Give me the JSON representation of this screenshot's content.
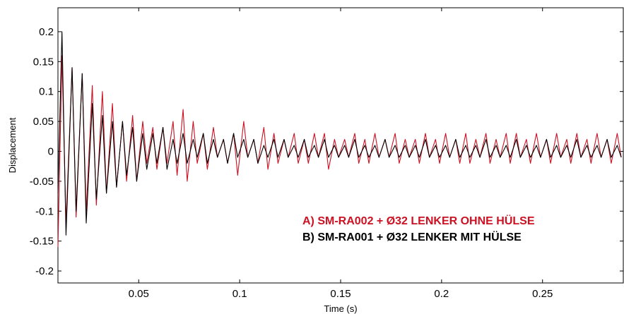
{
  "chart_data": {
    "type": "line",
    "title": "",
    "xlabel": "Time (s)",
    "ylabel": "Displacement",
    "xlim": [
      0.01,
      0.29
    ],
    "ylim": [
      -0.22,
      0.24
    ],
    "xticks": [
      0.05,
      0.1,
      0.15,
      0.2,
      0.25
    ],
    "xtick_labels": [
      "0.05",
      "0.1",
      "0.15",
      "0.2",
      "0.25"
    ],
    "yticks": [
      0.2,
      0.15,
      0.1,
      0.05,
      0,
      -0.05,
      -0.1,
      -0.15,
      -0.2
    ],
    "ytick_labels": [
      "0.2",
      "0.15",
      "0.1",
      "0.05",
      "0",
      "-0.05",
      "-0.1",
      "-0.15",
      "-0.2"
    ],
    "grid": false,
    "legend_position": "bottom-right",
    "series": [
      {
        "name": "A) SM-RA002 + Ø32 LENKER OHNE HÜLSE",
        "color": "#cc1122",
        "x": [
          0.01,
          0.012,
          0.014,
          0.017,
          0.019,
          0.022,
          0.024,
          0.027,
          0.029,
          0.032,
          0.034,
          0.037,
          0.039,
          0.042,
          0.044,
          0.047,
          0.049,
          0.052,
          0.054,
          0.057,
          0.059,
          0.062,
          0.064,
          0.067,
          0.069,
          0.072,
          0.074,
          0.077,
          0.079,
          0.082,
          0.084,
          0.087,
          0.089,
          0.092,
          0.094,
          0.097,
          0.099,
          0.102,
          0.104,
          0.107,
          0.109,
          0.112,
          0.114,
          0.117,
          0.119,
          0.122,
          0.124,
          0.127,
          0.129,
          0.132,
          0.134,
          0.137,
          0.139,
          0.142,
          0.144,
          0.147,
          0.149,
          0.152,
          0.154,
          0.157,
          0.159,
          0.162,
          0.164,
          0.167,
          0.169,
          0.172,
          0.174,
          0.177,
          0.179,
          0.182,
          0.184,
          0.187,
          0.189,
          0.192,
          0.194,
          0.197,
          0.199,
          0.202,
          0.204,
          0.207,
          0.209,
          0.212,
          0.214,
          0.217,
          0.219,
          0.222,
          0.224,
          0.227,
          0.229,
          0.232,
          0.234,
          0.237,
          0.239,
          0.242,
          0.244,
          0.247,
          0.249,
          0.252,
          0.254,
          0.257,
          0.259,
          0.262,
          0.264,
          0.267,
          0.269,
          0.272,
          0.274,
          0.277,
          0.279,
          0.282,
          0.284,
          0.287,
          0.289
        ],
        "y": [
          -0.16,
          0.16,
          -0.12,
          0.14,
          -0.11,
          0.13,
          -0.1,
          0.11,
          -0.09,
          0.1,
          -0.07,
          0.08,
          -0.06,
          0.05,
          -0.05,
          0.06,
          -0.05,
          0.05,
          -0.02,
          0.04,
          -0.03,
          0.04,
          -0.02,
          0.05,
          -0.04,
          0.07,
          -0.05,
          0.05,
          -0.02,
          0.03,
          -0.03,
          0.04,
          -0.01,
          0.02,
          -0.02,
          0.03,
          -0.04,
          0.05,
          -0.01,
          0.02,
          -0.02,
          0.04,
          -0.03,
          0.03,
          -0.02,
          0.02,
          -0.01,
          0.03,
          -0.02,
          0.02,
          -0.02,
          0.03,
          -0.01,
          0.03,
          -0.03,
          0.02,
          -0.01,
          0.02,
          -0.01,
          0.03,
          -0.02,
          0.02,
          -0.02,
          0.03,
          -0.01,
          0.02,
          -0.01,
          0.03,
          -0.02,
          0.02,
          -0.01,
          0.02,
          -0.02,
          0.03,
          -0.01,
          0.02,
          -0.02,
          0.03,
          -0.01,
          0.02,
          -0.02,
          0.03,
          -0.02,
          0.02,
          -0.01,
          0.03,
          -0.02,
          0.02,
          -0.01,
          0.03,
          -0.02,
          0.03,
          -0.01,
          0.02,
          -0.02,
          0.03,
          -0.01,
          0.02,
          -0.02,
          0.03,
          -0.01,
          0.02,
          -0.02,
          0.03,
          -0.01,
          0.02,
          -0.02,
          0.03,
          -0.01,
          0.02,
          -0.02,
          0.03,
          -0.01
        ]
      },
      {
        "name": "B) SM-RA001 + Ø32 LENKER MIT HÜLSE",
        "color": "#000000",
        "x": [
          0.01,
          0.012,
          0.014,
          0.017,
          0.019,
          0.022,
          0.024,
          0.027,
          0.029,
          0.032,
          0.034,
          0.037,
          0.039,
          0.042,
          0.044,
          0.047,
          0.049,
          0.052,
          0.054,
          0.057,
          0.059,
          0.062,
          0.064,
          0.067,
          0.069,
          0.072,
          0.074,
          0.077,
          0.079,
          0.082,
          0.084,
          0.087,
          0.089,
          0.092,
          0.094,
          0.097,
          0.099,
          0.102,
          0.104,
          0.107,
          0.109,
          0.112,
          0.114,
          0.117,
          0.119,
          0.122,
          0.124,
          0.127,
          0.129,
          0.132,
          0.134,
          0.137,
          0.139,
          0.142,
          0.144,
          0.147,
          0.149,
          0.152,
          0.154,
          0.157,
          0.159,
          0.162,
          0.164,
          0.167,
          0.169,
          0.172,
          0.174,
          0.177,
          0.179,
          0.182,
          0.184,
          0.187,
          0.189,
          0.192,
          0.194,
          0.197,
          0.199,
          0.202,
          0.204,
          0.207,
          0.209,
          0.212,
          0.214,
          0.217,
          0.219,
          0.222,
          0.224,
          0.227,
          0.229,
          0.232,
          0.234,
          0.237,
          0.239,
          0.242,
          0.244,
          0.247,
          0.249,
          0.252,
          0.254,
          0.257,
          0.259,
          0.262,
          0.264,
          0.267,
          0.269,
          0.272,
          0.274,
          0.277,
          0.279,
          0.282,
          0.284,
          0.287,
          0.289
        ],
        "y": [
          -0.07,
          0.2,
          -0.14,
          0.14,
          -0.1,
          0.13,
          -0.12,
          0.08,
          -0.08,
          0.06,
          -0.07,
          0.05,
          -0.06,
          0.05,
          -0.04,
          0.04,
          -0.05,
          0.03,
          -0.03,
          0.03,
          -0.02,
          0.04,
          -0.03,
          0.02,
          -0.02,
          0.03,
          -0.02,
          0.02,
          -0.01,
          0.03,
          -0.02,
          0.02,
          -0.01,
          0.02,
          -0.02,
          0.03,
          -0.01,
          0.02,
          -0.01,
          0.02,
          -0.02,
          0.01,
          -0.01,
          0.02,
          -0.01,
          0.02,
          -0.01,
          0.01,
          -0.01,
          0.02,
          -0.01,
          0.01,
          -0.01,
          0.02,
          -0.01,
          0.01,
          -0.01,
          0.01,
          -0.01,
          0.02,
          -0.01,
          0.01,
          -0.01,
          0.01,
          -0.01,
          0.02,
          -0.01,
          0.01,
          -0.01,
          0.01,
          -0.01,
          0.01,
          -0.01,
          0.02,
          -0.01,
          0.01,
          -0.01,
          0.01,
          -0.01,
          0.02,
          -0.01,
          0.01,
          -0.01,
          0.01,
          -0.01,
          0.02,
          -0.01,
          0.01,
          -0.01,
          0.01,
          -0.01,
          0.02,
          -0.01,
          0.01,
          -0.01,
          0.01,
          -0.01,
          0.02,
          -0.01,
          0.01,
          -0.01,
          0.01,
          -0.01,
          0.02,
          -0.01,
          0.01,
          -0.01,
          0.01,
          -0.01,
          0.02,
          -0.01,
          0.01,
          -0.01
        ]
      }
    ]
  }
}
